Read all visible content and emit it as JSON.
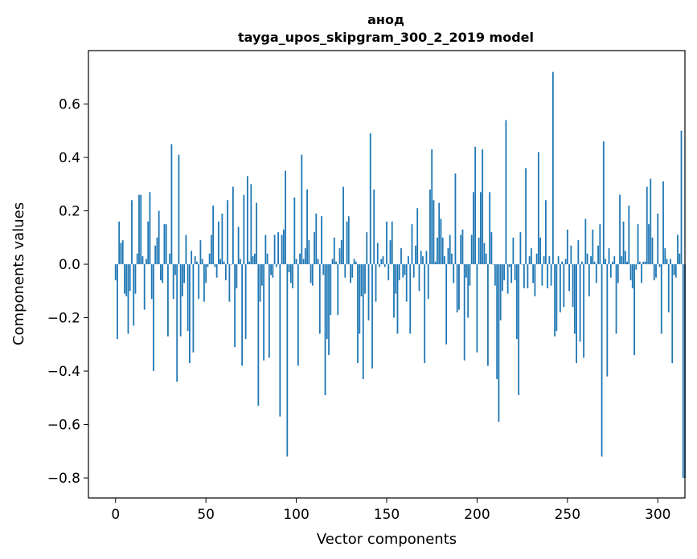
{
  "chart_data": {
    "type": "bar",
    "title_line1": "анод",
    "title_line2": "tayga_upos_skipgram_300_2_2019 model",
    "xlabel": "Vector components",
    "ylabel": "Components values",
    "xlim": [
      -15,
      315
    ],
    "ylim": [
      -0.875,
      0.8
    ],
    "x_ticks": [
      0,
      50,
      100,
      150,
      200,
      250,
      300
    ],
    "x_tick_labels": [
      "0",
      "50",
      "100",
      "150",
      "200",
      "250",
      "300"
    ],
    "y_ticks": [
      0.6,
      0.4,
      0.2,
      0.0,
      -0.2,
      -0.4,
      -0.6,
      -0.8
    ],
    "y_tick_labels": [
      "0.6",
      "0.4",
      "0.2",
      "0.0",
      "−0.2",
      "−0.4",
      "−0.6",
      "−0.8"
    ],
    "bar_color": "#1f77b4",
    "values": [
      -0.06,
      -0.28,
      0.16,
      0.08,
      0.09,
      -0.11,
      -0.12,
      -0.26,
      -0.1,
      0.24,
      -0.23,
      -0.11,
      0.04,
      0.26,
      0.26,
      0.03,
      -0.17,
      0.02,
      0.16,
      0.27,
      -0.13,
      -0.4,
      0.07,
      0.1,
      0.2,
      -0.06,
      -0.07,
      0.15,
      0.15,
      -0.27,
      0.04,
      0.45,
      -0.13,
      -0.04,
      -0.44,
      0.41,
      -0.27,
      -0.12,
      -0.07,
      0.11,
      -0.25,
      -0.37,
      0.05,
      -0.33,
      0.03,
      0.01,
      -0.13,
      0.09,
      0.02,
      -0.14,
      -0.07,
      -0.01,
      0.04,
      0.11,
      0.22,
      -0.01,
      -0.05,
      0.16,
      0.02,
      0.19,
      0.01,
      -0.06,
      0.24,
      -0.14,
      0.0,
      0.29,
      -0.31,
      -0.09,
      0.14,
      0.02,
      -0.38,
      0.26,
      -0.28,
      0.33,
      0.01,
      0.3,
      0.03,
      0.04,
      0.23,
      -0.53,
      -0.14,
      -0.08,
      -0.36,
      0.11,
      0.04,
      -0.35,
      -0.04,
      -0.05,
      0.11,
      -0.01,
      0.12,
      -0.57,
      0.11,
      0.13,
      0.35,
      -0.72,
      -0.03,
      -0.07,
      -0.09,
      0.25,
      0.02,
      -0.38,
      0.04,
      0.41,
      0.02,
      0.06,
      0.28,
      0.09,
      -0.07,
      -0.08,
      0.12,
      0.19,
      0.02,
      -0.26,
      0.18,
      -0.04,
      -0.49,
      -0.28,
      -0.34,
      -0.19,
      0.02,
      0.1,
      0.01,
      -0.19,
      0.06,
      0.09,
      0.29,
      -0.05,
      0.16,
      0.18,
      -0.07,
      -0.05,
      0.02,
      0.01,
      -0.37,
      -0.26,
      -0.12,
      -0.43,
      -0.11,
      0.12,
      -0.21,
      0.49,
      -0.39,
      0.28,
      -0.14,
      0.08,
      -0.01,
      0.02,
      0.03,
      -0.01,
      0.16,
      -0.06,
      0.09,
      0.16,
      -0.2,
      -0.11,
      -0.26,
      -0.06,
      0.06,
      -0.05,
      -0.04,
      -0.14,
      0.03,
      -0.26,
      0.15,
      -0.05,
      0.07,
      0.21,
      -0.1,
      0.05,
      0.03,
      -0.37,
      0.05,
      -0.13,
      0.28,
      0.43,
      0.24,
      0.01,
      0.1,
      0.23,
      0.17,
      0.1,
      0.03,
      -0.3,
      0.06,
      0.11,
      0.04,
      -0.07,
      0.34,
      -0.18,
      -0.17,
      0.11,
      0.13,
      -0.36,
      -0.05,
      -0.2,
      -0.08,
      0.11,
      0.27,
      0.44,
      -0.33,
      0.1,
      0.27,
      0.43,
      0.08,
      0.04,
      -0.38,
      0.27,
      0.12,
      0.0,
      -0.08,
      -0.43,
      -0.59,
      -0.21,
      -0.1,
      -0.06,
      0.54,
      -0.11,
      -0.01,
      -0.07,
      0.1,
      -0.06,
      -0.28,
      -0.49,
      0.12,
      0.0,
      -0.09,
      0.36,
      -0.09,
      0.03,
      0.06,
      -0.07,
      -0.12,
      0.04,
      0.42,
      0.1,
      -0.08,
      0.03,
      0.24,
      -0.09,
      0.03,
      -0.08,
      0.72,
      -0.27,
      -0.25,
      0.03,
      -0.18,
      0.01,
      -0.16,
      0.02,
      0.13,
      -0.1,
      0.07,
      -0.16,
      -0.26,
      -0.37,
      0.09,
      -0.29,
      0.01,
      -0.35,
      0.17,
      0.04,
      -0.12,
      0.03,
      0.13,
      0.01,
      -0.07,
      0.07,
      0.15,
      -0.72,
      0.46,
      0.02,
      -0.42,
      0.06,
      -0.05,
      0.01,
      0.03,
      -0.26,
      -0.07,
      0.26,
      0.03,
      0.16,
      0.05,
      0.01,
      0.22,
      -0.06,
      -0.09,
      -0.34,
      -0.02,
      0.15,
      0.01,
      -0.07,
      0.01,
      0.01,
      0.29,
      0.15,
      0.32,
      0.1,
      -0.06,
      -0.05,
      0.19,
      -0.01,
      -0.26,
      0.31,
      0.06,
      0.02,
      -0.18,
      0.02,
      -0.37,
      -0.04,
      -0.05,
      0.11,
      0.04,
      0.5,
      -0.8,
      -0.8
    ]
  }
}
